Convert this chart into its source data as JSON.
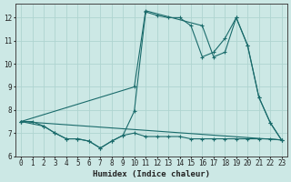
{
  "xlabel": "Humidex (Indice chaleur)",
  "background_color": "#cce8e5",
  "grid_color": "#afd4d0",
  "line_color": "#1a6b6b",
  "xlim": [
    -0.5,
    23.5
  ],
  "ylim": [
    6.0,
    12.6
  ],
  "yticks": [
    6,
    7,
    8,
    9,
    10,
    11,
    12
  ],
  "xticks": [
    0,
    1,
    2,
    3,
    4,
    5,
    6,
    7,
    8,
    9,
    10,
    11,
    12,
    13,
    14,
    15,
    16,
    17,
    18,
    19,
    20,
    21,
    22,
    23
  ],
  "line1_x": [
    0,
    1,
    2,
    3,
    4,
    5,
    6,
    7,
    8,
    9,
    10,
    11,
    12,
    13,
    14,
    15,
    16,
    17,
    18,
    19,
    20,
    21,
    22,
    23
  ],
  "line1_y": [
    7.5,
    7.5,
    7.3,
    7.0,
    6.75,
    6.75,
    6.65,
    6.35,
    6.65,
    6.9,
    7.95,
    12.25,
    12.1,
    12.0,
    12.0,
    11.65,
    10.3,
    10.5,
    11.1,
    12.0,
    10.8,
    8.55,
    7.45,
    6.7
  ],
  "line2_x": [
    0,
    2,
    3,
    4,
    5,
    6,
    7,
    8,
    9,
    10,
    11,
    12,
    13,
    14,
    15,
    16,
    17,
    18,
    19,
    20,
    21,
    22,
    23
  ],
  "line2_y": [
    7.5,
    7.3,
    7.0,
    6.75,
    6.75,
    6.65,
    6.35,
    6.65,
    6.9,
    7.0,
    6.85,
    6.85,
    6.85,
    6.85,
    6.75,
    6.75,
    6.75,
    6.75,
    6.75,
    6.75,
    6.75,
    6.75,
    6.7
  ],
  "line3_x": [
    0,
    23
  ],
  "line3_y": [
    7.5,
    6.7
  ],
  "line4_x": [
    0,
    10,
    11,
    16,
    17,
    18,
    19,
    20,
    21,
    22,
    23
  ],
  "line4_y": [
    7.5,
    9.0,
    12.3,
    11.65,
    10.3,
    10.5,
    12.0,
    10.8,
    8.55,
    7.45,
    6.7
  ]
}
